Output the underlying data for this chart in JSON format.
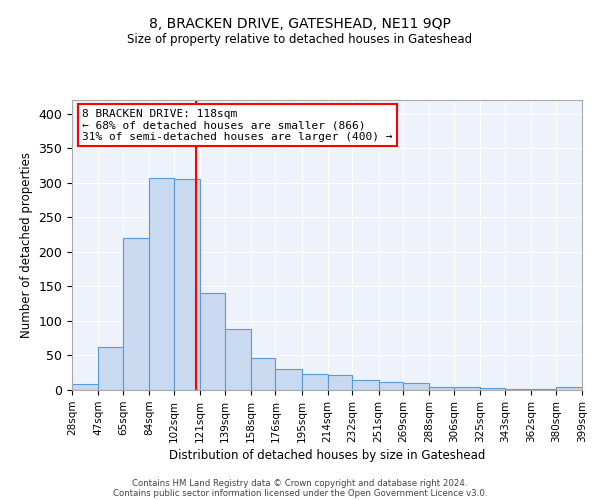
{
  "title": "8, BRACKEN DRIVE, GATESHEAD, NE11 9QP",
  "subtitle": "Size of property relative to detached houses in Gateshead",
  "xlabel": "Distribution of detached houses by size in Gateshead",
  "ylabel": "Number of detached properties",
  "bar_color": "#c9d9f0",
  "bar_edge_color": "#5b9bd5",
  "background_color": "#eef2fb",
  "grid_color": "#ffffff",
  "vline_x": 118,
  "vline_color": "red",
  "bin_edges": [
    28,
    47,
    65,
    84,
    102,
    121,
    139,
    158,
    176,
    195,
    214,
    232,
    251,
    269,
    288,
    306,
    325,
    343,
    362,
    380,
    399
  ],
  "bar_heights": [
    8,
    63,
    220,
    307,
    306,
    140,
    88,
    46,
    31,
    23,
    22,
    15,
    12,
    10,
    4,
    5,
    3,
    2,
    2,
    5
  ],
  "ylim": [
    0,
    420
  ],
  "yticks": [
    0,
    50,
    100,
    150,
    200,
    250,
    300,
    350,
    400
  ],
  "annotation_text": "8 BRACKEN DRIVE: 118sqm\n← 68% of detached houses are smaller (866)\n31% of semi-detached houses are larger (400) →",
  "footer_line1": "Contains HM Land Registry data © Crown copyright and database right 2024.",
  "footer_line2": "Contains public sector information licensed under the Open Government Licence v3.0.",
  "tick_labels": [
    "28sqm",
    "47sqm",
    "65sqm",
    "84sqm",
    "102sqm",
    "121sqm",
    "139sqm",
    "158sqm",
    "176sqm",
    "195sqm",
    "214sqm",
    "232sqm",
    "251sqm",
    "269sqm",
    "288sqm",
    "306sqm",
    "325sqm",
    "343sqm",
    "362sqm",
    "380sqm",
    "399sqm"
  ]
}
